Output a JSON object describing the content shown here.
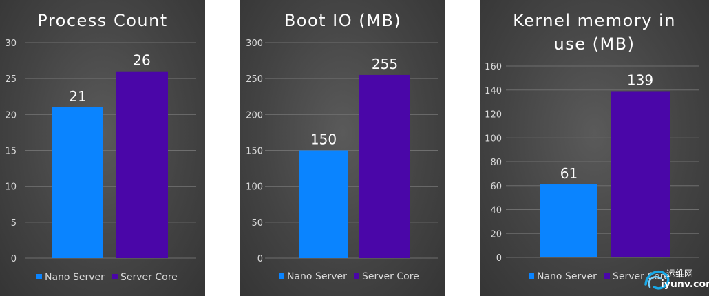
{
  "colors": {
    "nano": "#0a84ff",
    "core": "#4a06a8"
  },
  "chart_data": [
    {
      "type": "bar",
      "title": "Process Count",
      "categories": [
        ""
      ],
      "series": [
        {
          "name": "Nano Server",
          "values": [
            21
          ],
          "labels": [
            "21"
          ]
        },
        {
          "name": "Server Core",
          "values": [
            26
          ],
          "labels": [
            "26"
          ]
        }
      ],
      "ylim": [
        0,
        30
      ],
      "yticks": [
        "0",
        "5",
        "10",
        "15",
        "20",
        "25",
        "30"
      ],
      "xlabel": "",
      "ylabel": "",
      "grid": true,
      "legend": "bottom"
    },
    {
      "type": "bar",
      "title": "Boot IO (MB)",
      "categories": [
        ""
      ],
      "series": [
        {
          "name": "Nano Server",
          "values": [
            150
          ],
          "labels": [
            "150"
          ]
        },
        {
          "name": "Server Core",
          "values": [
            255
          ],
          "labels": [
            "255"
          ]
        }
      ],
      "ylim": [
        0,
        300
      ],
      "yticks": [
        "0",
        "50",
        "100",
        "150",
        "200",
        "250",
        "300"
      ],
      "xlabel": "",
      "ylabel": "",
      "grid": true,
      "legend": "bottom"
    },
    {
      "type": "bar",
      "title": "Kernel memory in use (MB)",
      "title_lines": [
        "Kernel memory in",
        "use (MB)"
      ],
      "categories": [
        ""
      ],
      "series": [
        {
          "name": "Nano Server",
          "values": [
            61
          ],
          "labels": [
            "61"
          ]
        },
        {
          "name": "Server Core",
          "values": [
            139
          ],
          "labels": [
            "139"
          ]
        }
      ],
      "ylim": [
        0,
        160
      ],
      "yticks": [
        "0",
        "20",
        "40",
        "60",
        "80",
        "100",
        "120",
        "140",
        "160"
      ],
      "xlabel": "",
      "ylabel": "",
      "grid": true,
      "legend": "bottom"
    }
  ],
  "watermark": {
    "text_cn": "运维网",
    "text_en": "iyunv.com",
    "icon": "swirl-logo-icon"
  }
}
